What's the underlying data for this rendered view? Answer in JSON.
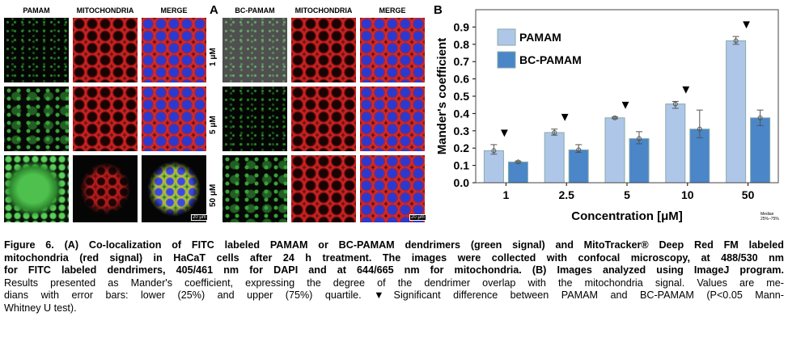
{
  "panel_a": {
    "label": "A",
    "headers_left": [
      "PAMAM",
      "MITOCHONDRIA",
      "MERGE"
    ],
    "headers_right": [
      "BC-PAMAM",
      "MITOCHONDRIA",
      "MERGE"
    ],
    "row_labels": [
      "1 μM",
      "5 μM",
      "50 μM"
    ],
    "scale_bar": "20 μm"
  },
  "panel_b": {
    "label": "B"
  },
  "chart_data": {
    "type": "bar",
    "x_label": "Concentration [μM]",
    "y_label": "Mander's coefficient",
    "categories": [
      "1",
      "2.5",
      "5",
      "10",
      "50"
    ],
    "series": [
      {
        "name": "PAMAM",
        "color": "#aec7e8",
        "values": [
          0.185,
          0.29,
          0.375,
          0.455,
          0.82
        ],
        "lower": [
          0.165,
          0.275,
          0.37,
          0.43,
          0.8
        ],
        "upper": [
          0.22,
          0.31,
          0.38,
          0.47,
          0.845
        ]
      },
      {
        "name": "BC-PAMAM",
        "color": "#4a86c8",
        "values": [
          0.12,
          0.19,
          0.255,
          0.31,
          0.375
        ],
        "lower": [
          0.115,
          0.175,
          0.225,
          0.26,
          0.33
        ],
        "upper": [
          0.125,
          0.22,
          0.295,
          0.42,
          0.42
        ]
      }
    ],
    "markers": [
      "▼",
      "▼",
      "▼",
      "▼",
      "▼"
    ],
    "ylim": [
      0,
      1
    ],
    "yticks": [
      {
        "value": 0,
        "label": "0.0"
      },
      0.1,
      0.2,
      0.3,
      0.4,
      0.5,
      0.6,
      0.7,
      0.8,
      0.9
    ],
    "grid": false,
    "legend_note": [
      "Median",
      "25%–75%"
    ]
  },
  "caption": {
    "lines": [
      "Figure 6. (A) Co-localization of FITC labeled PAMAM or BC-PAMAM dendrimers (green signal) and MitoTracker® Deep Red FM labeled",
      "mitochondria (red signal) in HaCaT cells after 24 h treatment. The images were collected with confocal microscopy, at 488/530 nm",
      "for FITC labeled dendrimers, 405/461 nm for DAPI and at 644/665 nm  for mitochondria. (B) Images analyzed using ImageJ program.",
      "Results presented as Mander's coefficient, expressing the degree of the dendrimer overlap with the mitochondria signal. Values are me-",
      "dians with error bars: lower (25%) and upper (75%) quartile. ▼Significant difference between PAMAM and BC-PAMAM (P<0.05 Mann-",
      "Whitney U test)."
    ]
  }
}
